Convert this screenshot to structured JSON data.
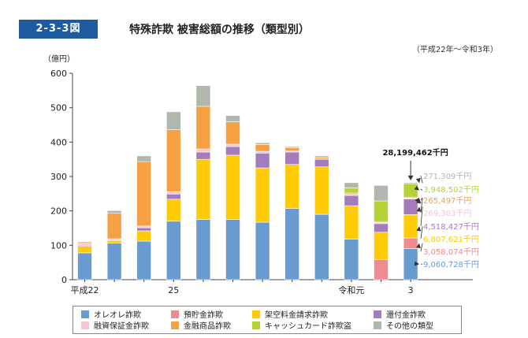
{
  "figure": {
    "number": "2-3-3図",
    "title": "特殊詐欺 被害総額の推移（類型別）",
    "period": "（平成22年～令和3年）"
  },
  "colors": {
    "oreore": "#6a9bd0",
    "yokin": "#ef8a8e",
    "kakuu": "#ffcb05",
    "kanpu": "#a57cbb",
    "yushi": "#f9c3d9",
    "kinyu": "#f5a043",
    "cash": "#b5d334",
    "other": "#b0b7ad"
  },
  "chart_data": {
    "type": "bar",
    "stacked": true,
    "ylabel": "（億円）",
    "ylim": [
      0,
      600
    ],
    "yticks": [
      0,
      100,
      200,
      300,
      400,
      500,
      600
    ],
    "categories": [
      "平成22",
      "23",
      "24",
      "25",
      "26",
      "27",
      "28",
      "29",
      "30",
      "令和元",
      "2",
      "3"
    ],
    "category_labels": [
      "平成22",
      "",
      "",
      "25",
      "",
      "",
      "",
      "",
      "",
      "令和元",
      "",
      "3"
    ],
    "series": [
      {
        "name": "オレオレ詐欺",
        "key": "oreore",
        "values": [
          78,
          106,
          112,
          170,
          175,
          175,
          167,
          207,
          190,
          118,
          0,
          90.6
        ]
      },
      {
        "name": "預貯金詐欺",
        "key": "yokin",
        "values": [
          0,
          0,
          0,
          0,
          0,
          0,
          0,
          0,
          0,
          0,
          58,
          30.6
        ]
      },
      {
        "name": "架空料金請求詐欺",
        "key": "kakuu",
        "values": [
          19,
          8,
          30,
          64,
          175,
          187,
          158,
          128,
          138,
          97,
          80,
          68.1
        ]
      },
      {
        "name": "還付金詐欺",
        "key": "kanpu",
        "values": [
          3,
          2,
          9,
          15,
          21,
          25,
          43,
          36,
          22,
          30,
          25,
          45.2
        ]
      },
      {
        "name": "融資保証金詐欺",
        "key": "yushi",
        "values": [
          5,
          3,
          5,
          7,
          9,
          7,
          5,
          3,
          2,
          3,
          3,
          2.7
        ]
      },
      {
        "name": "金融商品詐欺",
        "key": "kinyu",
        "values": [
          3,
          74,
          187,
          180,
          124,
          65,
          20,
          10,
          4,
          4,
          3,
          2.7
        ]
      },
      {
        "name": "キャッシュカード詐欺盗",
        "key": "cash",
        "values": [
          0,
          0,
          0,
          0,
          0,
          0,
          0,
          0,
          0,
          15,
          60,
          39.5
        ]
      },
      {
        "name": "その他の類型",
        "key": "other",
        "values": [
          3,
          8,
          17,
          52,
          60,
          18,
          5,
          3,
          4,
          15,
          45,
          2.7
        ]
      }
    ],
    "annotations": {
      "total": "28,199,462千円",
      "breakdown": [
        {
          "text": "271,309千円",
          "key": "other"
        },
        {
          "text": "3,948,502千円",
          "key": "cash"
        },
        {
          "text": "265,497千円",
          "key": "kinyu"
        },
        {
          "text": "269,303千円",
          "key": "yushi"
        },
        {
          "text": "4,518,427千円",
          "key": "kanpu"
        },
        {
          "text": "6,807,621千円",
          "key": "kakuu"
        },
        {
          "text": "3,058,074千円",
          "key": "yokin"
        },
        {
          "text": "9,060,728千円",
          "key": "oreore"
        }
      ]
    },
    "legend_position": "bottom"
  }
}
